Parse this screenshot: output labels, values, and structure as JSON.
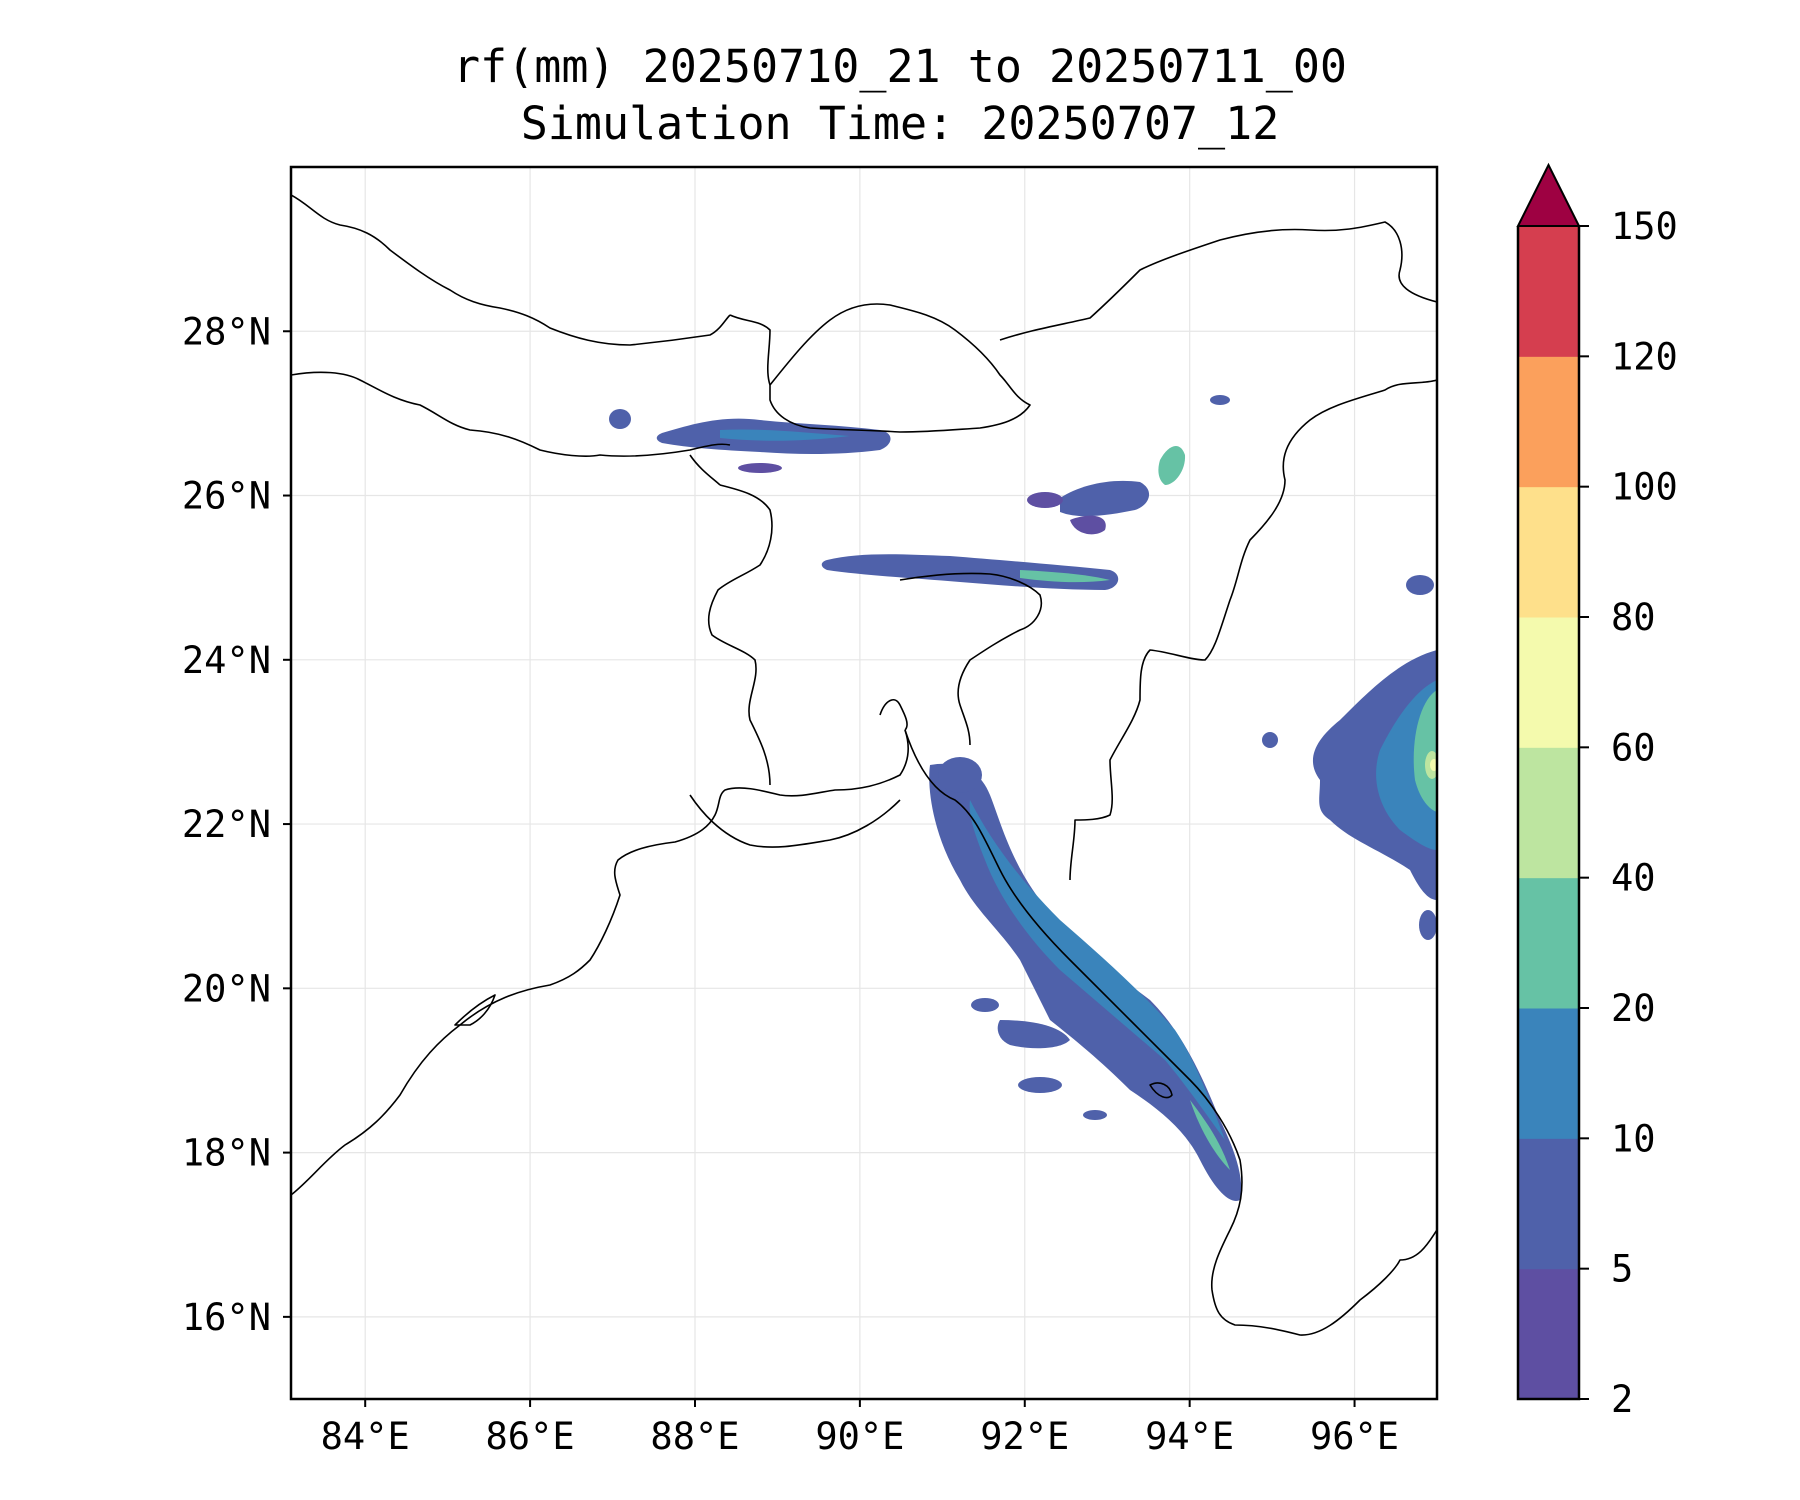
{
  "title_line1": "rf(mm) 20250710_21 to 20250711_00",
  "title_line2": "Simulation Time: 20250707_12",
  "map": {
    "lon_range": [
      83.1,
      97.0
    ],
    "lat_range": [
      15.0,
      30.0
    ],
    "x_ticks": [
      "84°E",
      "86°E",
      "88°E",
      "90°E",
      "92°E",
      "94°E",
      "96°E"
    ],
    "y_ticks": [
      "28°N",
      "26°N",
      "24°N",
      "22°N",
      "20°N",
      "18°N",
      "16°N"
    ],
    "grid": true,
    "features": [
      "coastline",
      "country-borders",
      "rainfall-contours"
    ]
  },
  "colorbar": {
    "extend": "max",
    "levels": [
      "2",
      "5",
      "10",
      "20",
      "40",
      "60",
      "80",
      "100",
      "120",
      "150"
    ],
    "colors": [
      "#5e4fa2",
      "#4f61aa",
      "#3a84bb",
      "#66c2a5",
      "#bde5a0",
      "#f4faad",
      "#fee08b",
      "#fba05c",
      "#d53e4f"
    ],
    "over_color": "#9e0142"
  },
  "colors": {
    "r2": "#5e4fa2",
    "r5": "#4f61aa",
    "r10": "#3a84bb",
    "r20": "#66c2a5",
    "r40": "#bde5a0",
    "r60": "#f4faad"
  }
}
